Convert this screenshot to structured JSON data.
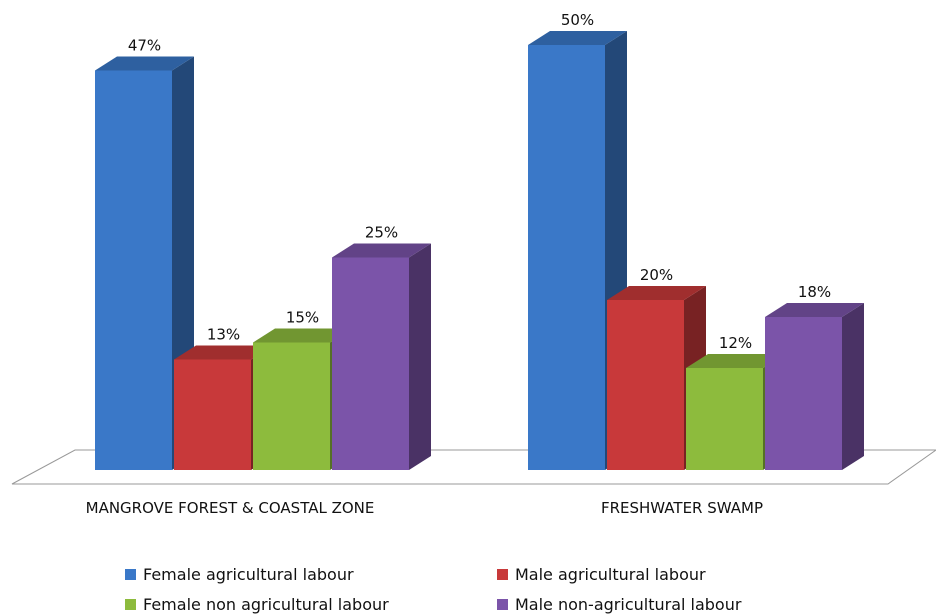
{
  "chart_data": {
    "type": "bar3d",
    "categories": [
      "MANGROVE FOREST & COASTAL ZONE",
      "FRESHWATER SWAMP"
    ],
    "series": [
      {
        "name": "Female agricultural labour",
        "color": "#3a78c8",
        "values": [
          47,
          50
        ],
        "value_labels": [
          "47%",
          "50%"
        ]
      },
      {
        "name": "Male agricultural labour",
        "color": "#c8393a",
        "values": [
          13,
          20
        ],
        "value_labels": [
          "13%",
          "20%"
        ]
      },
      {
        "name": "Female non agricultural labour",
        "color": "#8dbb3d",
        "values": [
          15,
          12
        ],
        "value_labels": [
          "15%",
          "12%"
        ]
      },
      {
        "name": "Male non-agricultural labour",
        "color": "#7b54a9",
        "values": [
          25,
          18
        ],
        "value_labels": [
          "25%",
          "18%"
        ]
      }
    ]
  }
}
